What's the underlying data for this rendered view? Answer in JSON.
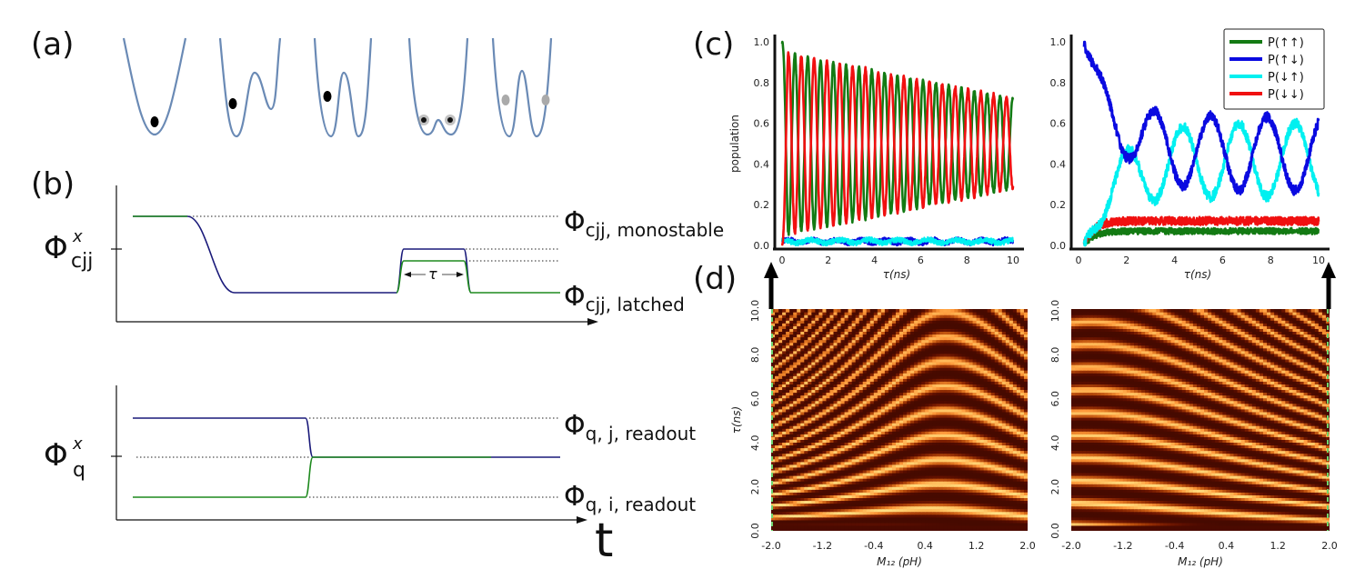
{
  "panel_labels": {
    "a": "(a)",
    "b": "(b)",
    "c": "(c)",
    "d": "(d)"
  },
  "colors": {
    "navy": "#1a1a7a",
    "green": "#1f8a1f",
    "potential": "#6a8ab5",
    "legend_green": "#137a13",
    "legend_blue": "#0a0ae0",
    "legend_cyan": "#00f0f0",
    "legend_red": "#f01010"
  },
  "panel_b": {
    "cjj_symbol": "Φ",
    "cjj_sup": "x",
    "cjj_sub": "cjj",
    "q_symbol": "Φ",
    "q_sup": "x",
    "q_sub": "q",
    "label_monostable_main": "Φ",
    "label_monostable_sub": "cjj, monostable",
    "label_latched_main": "Φ",
    "label_latched_sub": "cjj, latched",
    "label_j_main": "Φ",
    "label_j_sub": "q, j, readout",
    "label_i_main": "Φ",
    "label_i_sub": "q, i, readout",
    "tau": "τ",
    "t_axis": "t"
  },
  "chart_data": [
    {
      "type": "line",
      "panel": "c-left",
      "xlabel": "τ(ns)",
      "ylabel": "population",
      "xlim": [
        0,
        10
      ],
      "ylim": [
        0,
        1
      ],
      "xticks": [
        "0",
        "2",
        "4",
        "6",
        "8",
        "10"
      ],
      "yticks": [
        "0.0",
        "0.2",
        "0.4",
        "0.6",
        "0.8",
        "1.0"
      ],
      "series_desc": [
        {
          "color": "green",
          "start": 1.0,
          "mid": 0.5,
          "amp_start": 0.45,
          "amp_end": 0.2
        },
        {
          "color": "red",
          "start": 0.0,
          "mid": 0.5,
          "amp_start": 0.45,
          "amp_end": 0.2
        },
        {
          "color": "blue",
          "level": 0.02
        },
        {
          "color": "cyan",
          "level": 0.02
        }
      ]
    },
    {
      "type": "line",
      "panel": "c-right",
      "xlabel": "τ(ns)",
      "xlim": [
        0,
        10
      ],
      "ylim": [
        0,
        1
      ],
      "xticks": [
        "0",
        "2",
        "4",
        "6",
        "8",
        "10"
      ],
      "yticks": [
        "0.0",
        "0.2",
        "0.4",
        "0.6",
        "0.8",
        "1.0"
      ],
      "legend": [
        "P(↑↑)",
        "P(↑↓)",
        "P(↓↑)",
        "P(↓↓)"
      ],
      "legend_placement": "top-right"
    },
    {
      "type": "heatmap",
      "panel": "d-left",
      "xlabel": "M₁₂ (pH)",
      "ylabel": "τ(ns)",
      "xlim": [
        -2.0,
        2.0
      ],
      "ylim": [
        0,
        10
      ],
      "xticks": [
        "-2.0",
        "-1.2",
        "-0.4",
        "0.4",
        "1.2",
        "2.0"
      ],
      "yticks": [
        "0.0",
        "2.0",
        "4.0",
        "6.0",
        "8.0",
        "10.0"
      ]
    },
    {
      "type": "heatmap",
      "panel": "d-right",
      "xlabel": "M₁₂ (pH)",
      "xlim": [
        -2.0,
        2.0
      ],
      "ylim": [
        0,
        10
      ],
      "xticks": [
        "-2.0",
        "-1.2",
        "-0.4",
        "0.4",
        "1.2",
        "2.0"
      ],
      "yticks": [
        "0.0",
        "2.0",
        "4.0",
        "6.0",
        "8.0",
        "10.0"
      ]
    }
  ]
}
